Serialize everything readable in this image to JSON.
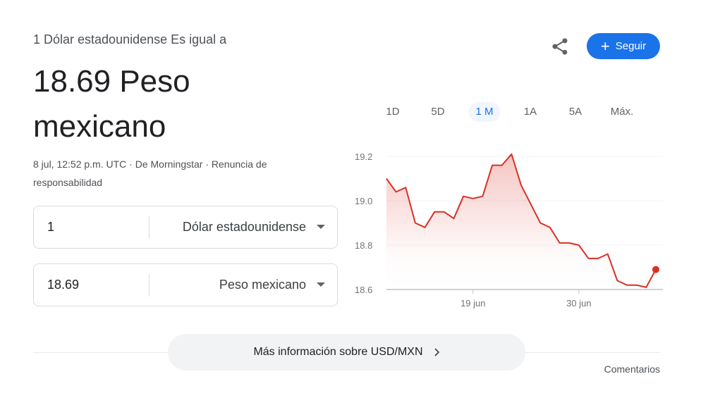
{
  "header": {
    "equals_text": "1 Dólar estadounidense Es igual a",
    "result": "18.69 Peso mexicano"
  },
  "meta": {
    "timestamp": "8 jul, 12:52 p.m. UTC",
    "source": "De Morningstar",
    "disclaimer": "Renuncia de responsabilidad",
    "separator": " · "
  },
  "converter": {
    "from": {
      "value": "1",
      "currency": "Dólar estadounidense"
    },
    "to": {
      "value": "18.69",
      "currency": "Peso mexicano"
    }
  },
  "actions": {
    "share_icon": "share-icon",
    "follow_label": "Seguir"
  },
  "tabs": [
    {
      "label": "1D"
    },
    {
      "label": "5D"
    },
    {
      "label": "1 M",
      "selected": true
    },
    {
      "label": "1A"
    },
    {
      "label": "5A"
    },
    {
      "label": "Máx."
    }
  ],
  "chart_data": {
    "type": "area",
    "color": "#d93025",
    "ylim": [
      18.6,
      19.2
    ],
    "yticks": [
      "19.2",
      "19.0",
      "18.8",
      "18.6"
    ],
    "xlim": [
      "06-10",
      "07-08"
    ],
    "xticks": [
      {
        "date": "06-19",
        "label": "19 jun"
      },
      {
        "date": "06-30",
        "label": "30 jun"
      }
    ],
    "grid": true,
    "points": [
      [
        "06-10",
        19.1
      ],
      [
        "06-11",
        19.04
      ],
      [
        "06-12",
        19.06
      ],
      [
        "06-13",
        18.9
      ],
      [
        "06-14",
        18.88
      ],
      [
        "06-15",
        18.95
      ],
      [
        "06-16",
        18.95
      ],
      [
        "06-17",
        18.92
      ],
      [
        "06-18",
        19.02
      ],
      [
        "06-19",
        19.01
      ],
      [
        "06-20",
        19.02
      ],
      [
        "06-21",
        19.16
      ],
      [
        "06-22",
        19.16
      ],
      [
        "06-23",
        19.21
      ],
      [
        "06-24",
        19.07
      ],
      [
        "06-26",
        18.9
      ],
      [
        "06-27",
        18.88
      ],
      [
        "06-28",
        18.81
      ],
      [
        "06-29",
        18.81
      ],
      [
        "06-30",
        18.8
      ],
      [
        "07-01",
        18.74
      ],
      [
        "07-02",
        18.74
      ],
      [
        "07-03",
        18.76
      ],
      [
        "07-04",
        18.64
      ],
      [
        "07-05",
        18.62
      ],
      [
        "07-06",
        18.62
      ],
      [
        "07-07",
        18.61
      ],
      [
        "07-08",
        18.69
      ]
    ]
  },
  "footer": {
    "more_info": "Más información sobre USD/MXN",
    "feedback": "Comentarios"
  }
}
